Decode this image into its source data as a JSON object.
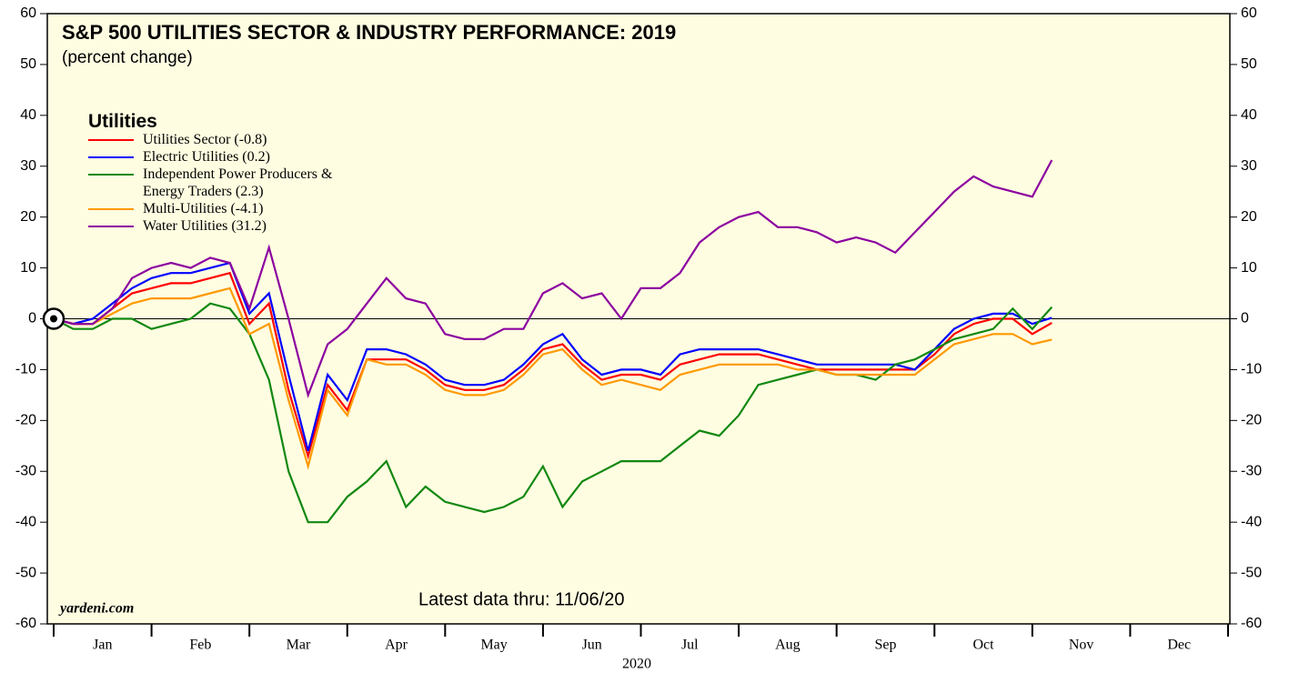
{
  "chart_data": {
    "type": "line",
    "title": "S&P 500 UTILITIES SECTOR & INDUSTRY PERFORMANCE: 2019",
    "subtitle": "(percent change)",
    "legend_title": "Utilities",
    "annotation": "Latest data thru: 11/06/20",
    "source": "yardeni.com",
    "x_label": "2020",
    "categories": [
      "Jan",
      "Feb",
      "Mar",
      "Apr",
      "May",
      "Jun",
      "Jul",
      "Aug",
      "Sep",
      "Oct",
      "Nov",
      "Dec"
    ],
    "xlim": [
      0,
      12
    ],
    "xticks": [
      0,
      1,
      2,
      3,
      4,
      5,
      6,
      7,
      8,
      9,
      10,
      11,
      12
    ],
    "ylim": [
      -60,
      60
    ],
    "yticks": [
      -60,
      -50,
      -40,
      -30,
      -20,
      -10,
      0,
      10,
      20,
      30,
      40,
      50,
      60
    ],
    "x": [
      0,
      0.2,
      0.4,
      0.6,
      0.8,
      1.0,
      1.2,
      1.4,
      1.6,
      1.8,
      2.0,
      2.2,
      2.4,
      2.6,
      2.8,
      3.0,
      3.2,
      3.4,
      3.6,
      3.8,
      4.0,
      4.2,
      4.4,
      4.6,
      4.8,
      5.0,
      5.2,
      5.4,
      5.6,
      5.8,
      6.0,
      6.2,
      6.4,
      6.6,
      6.8,
      7.0,
      7.2,
      7.4,
      7.6,
      7.8,
      8.0,
      8.2,
      8.4,
      8.6,
      8.8,
      9.0,
      9.2,
      9.4,
      9.6,
      9.8,
      10.0,
      10.2
    ],
    "series": [
      {
        "name": "Utilities Sector (-0.8)",
        "color": "#ff0000",
        "values": [
          0,
          -1,
          -1,
          2,
          5,
          6,
          7,
          7,
          8,
          9,
          -1,
          3,
          -14,
          -27,
          -13,
          -18,
          -8,
          -8,
          -8,
          -10,
          -13,
          -14,
          -14,
          -13,
          -10,
          -6,
          -5,
          -9,
          -12,
          -11,
          -11,
          -12,
          -9,
          -8,
          -7,
          -7,
          -7,
          -8,
          -9,
          -10,
          -10,
          -10,
          -10,
          -10,
          -10,
          -7,
          -3,
          -1,
          0,
          0,
          -3,
          -0.8
        ]
      },
      {
        "name": "Electric Utilities (0.2)",
        "color": "#0000ff",
        "values": [
          0,
          -1,
          0,
          3,
          6,
          8,
          9,
          9,
          10,
          11,
          1,
          5,
          -11,
          -26,
          -11,
          -16,
          -6,
          -6,
          -7,
          -9,
          -12,
          -13,
          -13,
          -12,
          -9,
          -5,
          -3,
          -8,
          -11,
          -10,
          -10,
          -11,
          -7,
          -6,
          -6,
          -6,
          -6,
          -7,
          -8,
          -9,
          -9,
          -9,
          -9,
          -9,
          -10,
          -6,
          -2,
          0,
          1,
          1,
          -1,
          0.2
        ]
      },
      {
        "name": "Independent Power Producers & Energy Traders (2.3)",
        "color": "#118811",
        "values": [
          0,
          -2,
          -2,
          0,
          0,
          -2,
          -1,
          0,
          3,
          2,
          -3,
          -12,
          -30,
          -40,
          -40,
          -35,
          -32,
          -28,
          -37,
          -33,
          -36,
          -37,
          -38,
          -37,
          -35,
          -29,
          -37,
          -32,
          -30,
          -28,
          -28,
          -28,
          -25,
          -22,
          -23,
          -19,
          -13,
          -12,
          -11,
          -10,
          -11,
          -11,
          -12,
          -9,
          -8,
          -6,
          -4,
          -3,
          -2,
          2,
          -2,
          2.3
        ]
      },
      {
        "name": "Multi-Utilities (-4.1)",
        "color": "#ff9900",
        "values": [
          0,
          -1,
          -1,
          1,
          3,
          4,
          4,
          4,
          5,
          6,
          -3,
          -1,
          -16,
          -29,
          -14,
          -19,
          -8,
          -9,
          -9,
          -11,
          -14,
          -15,
          -15,
          -14,
          -11,
          -7,
          -6,
          -10,
          -13,
          -12,
          -13,
          -14,
          -11,
          -10,
          -9,
          -9,
          -9,
          -9,
          -10,
          -10,
          -11,
          -11,
          -11,
          -11,
          -11,
          -8,
          -5,
          -4,
          -3,
          -3,
          -5,
          -4.1
        ]
      },
      {
        "name": "Water Utilities (31.2)",
        "color": "#8b00a0",
        "values": [
          0,
          -1,
          -1,
          2,
          8,
          10,
          11,
          10,
          12,
          11,
          2,
          14,
          0,
          -15,
          -5,
          -2,
          3,
          8,
          4,
          3,
          -3,
          -4,
          -4,
          -2,
          -2,
          5,
          7,
          4,
          5,
          0,
          6,
          6,
          9,
          15,
          18,
          20,
          21,
          18,
          18,
          17,
          15,
          16,
          15,
          13,
          17,
          21,
          25,
          28,
          26,
          25,
          24,
          31.2
        ]
      }
    ]
  }
}
